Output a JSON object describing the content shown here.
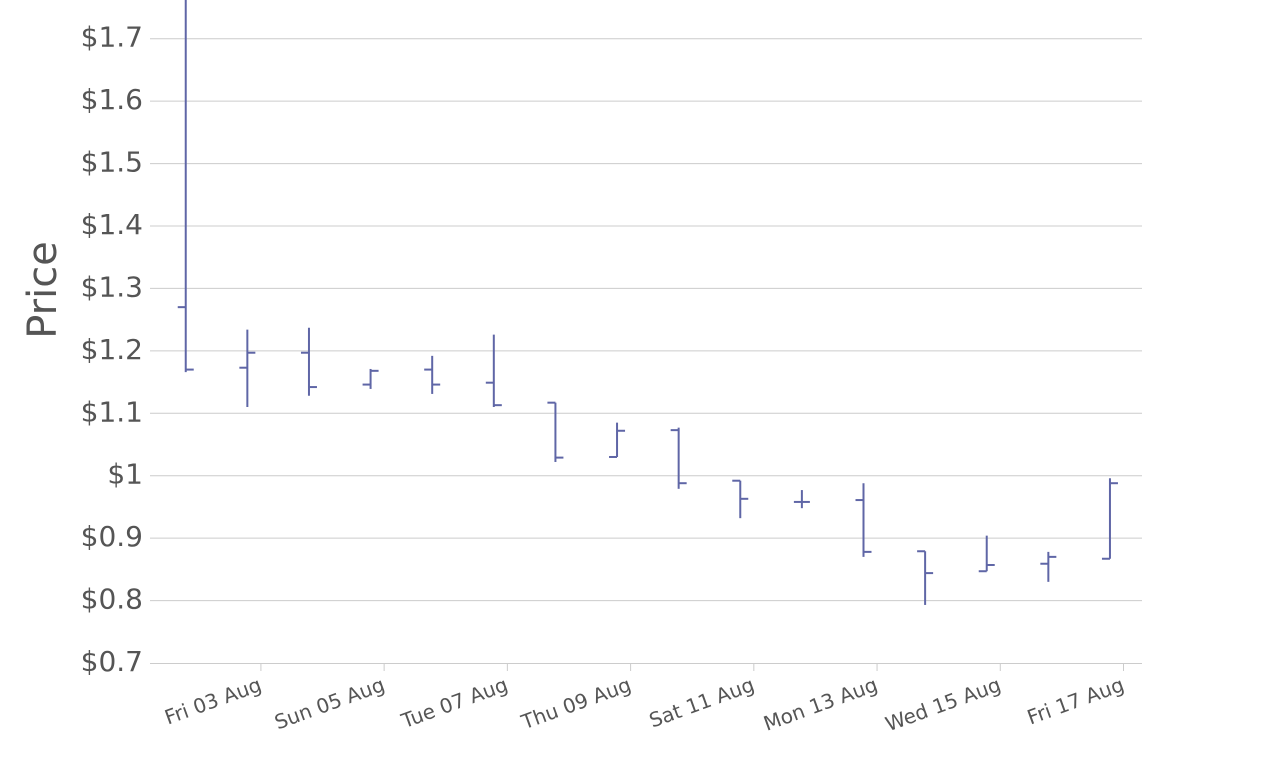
{
  "chart_data": {
    "type": "ohlc",
    "y_label": "Price",
    "color": "#5f66a6",
    "grid": true,
    "x": [
      1.78,
      2.78,
      3.78,
      4.78,
      5.78,
      6.78,
      7.78,
      8.78,
      9.78,
      10.78,
      11.78,
      12.78,
      13.78,
      14.78,
      15.78,
      16.78
    ],
    "open": [
      1.27,
      1.173,
      1.197,
      1.146,
      1.17,
      1.149,
      1.117,
      1.03,
      1.073,
      0.992,
      0.958,
      0.961,
      0.879,
      0.847,
      0.859,
      0.867
    ],
    "high": [
      1.8,
      1.234,
      1.237,
      1.171,
      1.192,
      1.226,
      1.117,
      1.085,
      1.077,
      0.992,
      0.977,
      0.988,
      0.879,
      0.904,
      0.878,
      0.996
    ],
    "low": [
      1.166,
      1.11,
      1.128,
      1.139,
      1.131,
      1.11,
      1.022,
      1.03,
      0.979,
      0.932,
      0.948,
      0.87,
      0.793,
      0.847,
      0.83,
      0.867
    ],
    "close": [
      1.17,
      1.197,
      1.142,
      1.168,
      1.146,
      1.113,
      1.029,
      1.072,
      0.988,
      0.963,
      0.958,
      0.878,
      0.844,
      0.857,
      0.87,
      0.988
    ],
    "xlim": [
      1.2,
      17.3
    ],
    "xticks": [
      {
        "value": 3,
        "label": "Fri 03 Aug"
      },
      {
        "value": 5,
        "label": "Sun 05 Aug"
      },
      {
        "value": 7,
        "label": "Tue 07 Aug"
      },
      {
        "value": 9,
        "label": "Thu 09 Aug"
      },
      {
        "value": 11,
        "label": "Sat 11 Aug"
      },
      {
        "value": 13,
        "label": "Mon 13 Aug"
      },
      {
        "value": 15,
        "label": "Wed 15 Aug"
      },
      {
        "value": 17,
        "label": "Fri 17 Aug"
      }
    ],
    "ylim": [
      0.7,
      1.762
    ],
    "yticks": [
      {
        "value": 0.7,
        "label": "$0.7"
      },
      {
        "value": 0.8,
        "label": "$0.8"
      },
      {
        "value": 0.9,
        "label": "$0.9"
      },
      {
        "value": 1,
        "label": "$1"
      },
      {
        "value": 1.1,
        "label": "$1.1"
      },
      {
        "value": 1.2,
        "label": "$1.2"
      },
      {
        "value": 1.3,
        "label": "$1.3"
      },
      {
        "value": 1.4,
        "label": "$1.4"
      },
      {
        "value": 1.5,
        "label": "$1.5"
      },
      {
        "value": 1.6,
        "label": "$1.6"
      },
      {
        "value": 1.7,
        "label": "$1.7"
      }
    ]
  }
}
